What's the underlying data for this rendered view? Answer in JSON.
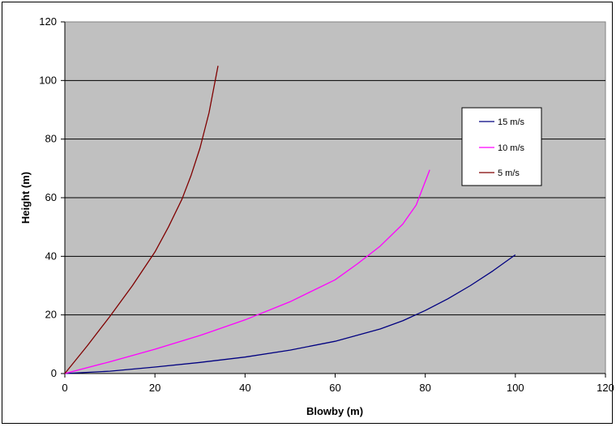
{
  "chart_data": {
    "type": "line",
    "title": "",
    "xlabel": "Blowby (m)",
    "ylabel": "Height (m)",
    "xlim": [
      0,
      120
    ],
    "ylim": [
      0,
      120
    ],
    "xticks": [
      "0",
      "20",
      "40",
      "60",
      "80",
      "100",
      "120"
    ],
    "yticks": [
      "0",
      "20",
      "40",
      "60",
      "80",
      "100",
      "120"
    ],
    "grid": "horizontal",
    "plot_background": "#c0c0c0",
    "legend_position": "right",
    "series": [
      {
        "name": "15 m/s",
        "color": "#000080",
        "x": [
          0,
          10,
          20,
          30,
          40,
          50,
          60,
          70,
          75,
          80,
          85,
          90,
          95,
          100
        ],
        "y": [
          0,
          0.8,
          2.2,
          3.8,
          5.6,
          8.0,
          11.0,
          15.2,
          18.0,
          21.5,
          25.5,
          30.0,
          35.0,
          40.5
        ]
      },
      {
        "name": "10 m/s",
        "color": "#ff00ff",
        "x": [
          0,
          10,
          20,
          30,
          40,
          50,
          60,
          65,
          70,
          75,
          78,
          81
        ],
        "y": [
          0,
          4.0,
          8.3,
          13.0,
          18.3,
          24.5,
          32.0,
          37.5,
          43.5,
          51.0,
          57.5,
          69.5
        ]
      },
      {
        "name": "5 m/s",
        "color": "#800000",
        "x": [
          0,
          5,
          10,
          15,
          20,
          23,
          26,
          28,
          30,
          32,
          34
        ],
        "y": [
          0,
          9.5,
          19.5,
          30.0,
          41.5,
          50.0,
          59.5,
          67.5,
          77.0,
          89.0,
          105.0
        ]
      }
    ]
  }
}
